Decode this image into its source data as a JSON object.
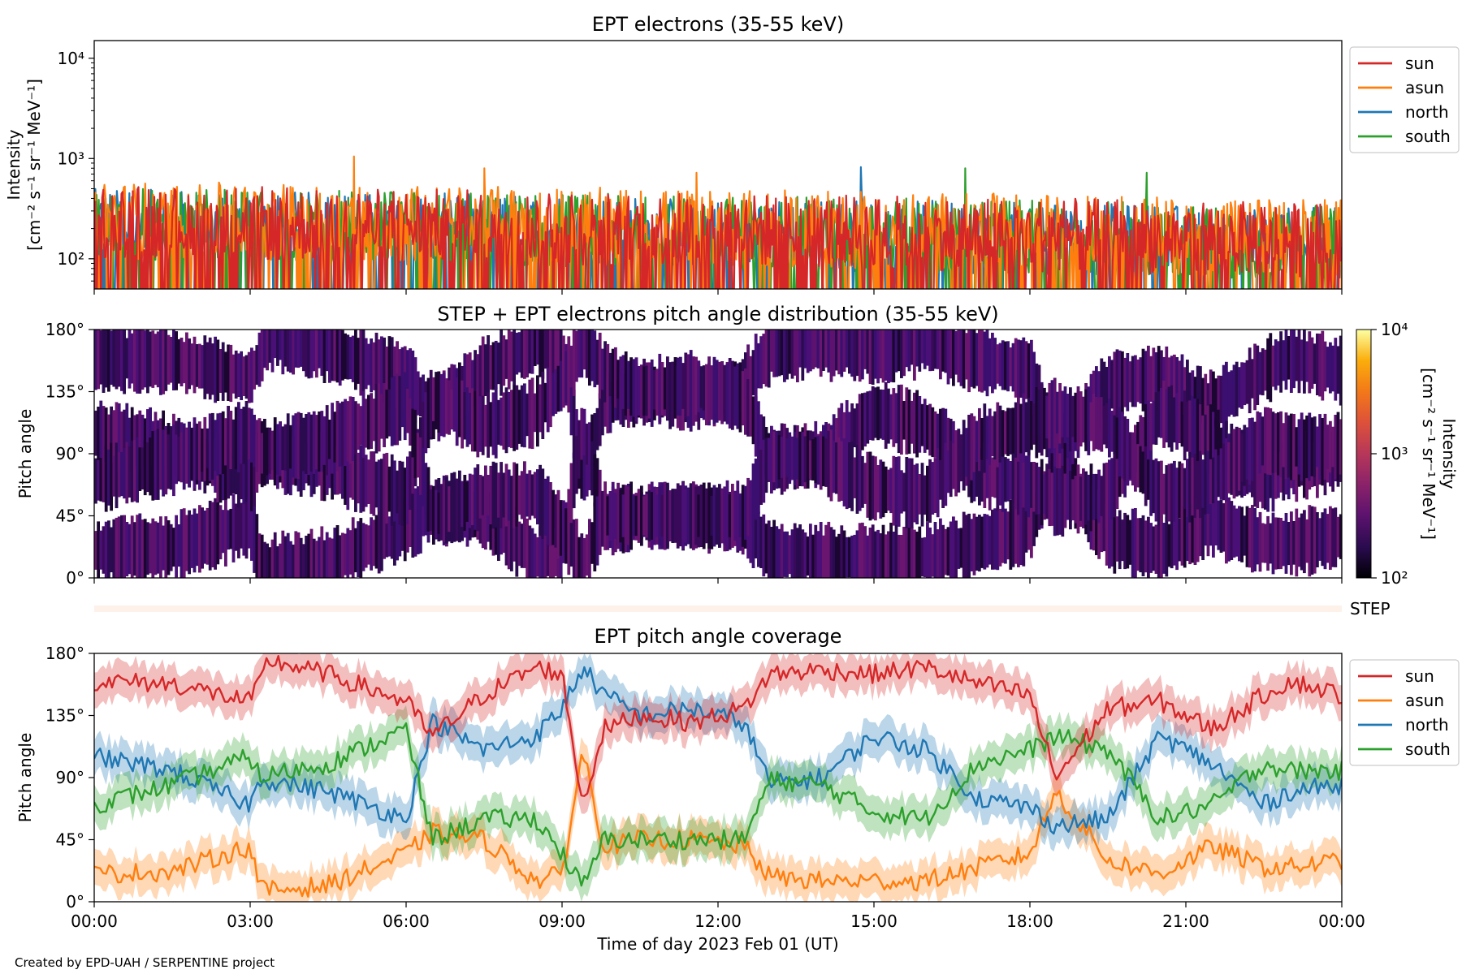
{
  "chart_data": [
    {
      "type": "line",
      "title": "EPT electrons (35-55 keV)",
      "ylabel": "Intensity",
      "ylabel_unit": "[cm⁻² s⁻¹ sr⁻¹ MeV⁻¹]",
      "yscale": "log",
      "ylim": [
        50,
        15000
      ],
      "yticks": [
        {
          "value": 100,
          "label": "10²"
        },
        {
          "value": 1000,
          "label": "10³"
        },
        {
          "value": 10000,
          "label": "10⁴"
        }
      ],
      "xlim": [
        "2023-02-01T00:00",
        "2023-02-02T00:00"
      ],
      "legend": "upper-right-outside",
      "series": [
        {
          "name": "sun",
          "color": "#d62728",
          "typical_range": [
            60,
            550
          ]
        },
        {
          "name": "asun",
          "color": "#ff7f0e",
          "typical_range": [
            60,
            600
          ],
          "peaks": [
            {
              "x": "05:00",
              "y": 1050
            },
            {
              "x": "07:30",
              "y": 800
            },
            {
              "x": "11:35",
              "y": 720
            }
          ]
        },
        {
          "name": "north",
          "color": "#1f77b4",
          "typical_range": [
            55,
            500
          ],
          "peaks": [
            {
              "x": "14:45",
              "y": 820
            }
          ]
        },
        {
          "name": "south",
          "color": "#2ca02c",
          "typical_range": [
            55,
            520
          ],
          "peaks": [
            {
              "x": "16:45",
              "y": 800
            },
            {
              "x": "20:15",
              "y": 720
            }
          ]
        }
      ]
    },
    {
      "type": "heatmap",
      "title": "STEP + EPT electrons pitch angle distribution (35-55 keV)",
      "ylabel": "Pitch angle",
      "ylim": [
        0,
        180
      ],
      "yticks": [
        "0°",
        "45°",
        "90°",
        "135°",
        "180°"
      ],
      "colormap": "inferno",
      "cmap_colors": [
        "#000004",
        "#2a0b4f",
        "#5c126e",
        "#8a226a",
        "#b73759",
        "#dd513a",
        "#f37819",
        "#fbad0b",
        "#fcffa4"
      ],
      "colorbar": {
        "label": "Intensity",
        "unit": "[cm⁻² s⁻¹ sr⁻¹ MeV⁻¹]",
        "scale": "log",
        "range": [
          100,
          10000
        ],
        "ticks": [
          {
            "value": 100,
            "label": "10²"
          },
          {
            "value": 1000,
            "label": "10³"
          },
          {
            "value": 10000,
            "label": "10⁴"
          }
        ]
      },
      "step_strip_label": "STEP"
    },
    {
      "type": "line",
      "title": "EPT pitch angle coverage",
      "ylabel": "Pitch angle",
      "xlabel": "Time of day 2023 Feb 01 (UT)",
      "ylim": [
        0,
        180
      ],
      "yticks": [
        "0°",
        "45°",
        "90°",
        "135°",
        "180°"
      ],
      "xticks": [
        "00:00",
        "03:00",
        "06:00",
        "09:00",
        "12:00",
        "15:00",
        "18:00",
        "21:00",
        "00:00"
      ],
      "x_hours": [
        0,
        1.5,
        3,
        3.2,
        3.35,
        4.5,
        6,
        6.5,
        7.5,
        8.5,
        9,
        9.4,
        9.8,
        10.5,
        11.5,
        12.5,
        13,
        14,
        15,
        16,
        17,
        18,
        18.5,
        19.5,
        20.5,
        21.5,
        22.5,
        23,
        24
      ],
      "legend": "upper-right-outside",
      "series": [
        {
          "name": "sun",
          "color": "#d62728",
          "values": [
            160,
            158,
            145,
            160,
            175,
            165,
            145,
            120,
            150,
            170,
            165,
            70,
            125,
            135,
            130,
            140,
            165,
            168,
            165,
            170,
            158,
            150,
            90,
            140,
            145,
            125,
            150,
            160,
            150
          ]
        },
        {
          "name": "asun",
          "color": "#ff7f0e",
          "values": [
            20,
            22,
            40,
            10,
            8,
            12,
            35,
            50,
            45,
            15,
            20,
            110,
            40,
            45,
            45,
            40,
            18,
            15,
            15,
            15,
            25,
            35,
            80,
            30,
            20,
            40,
            25,
            25,
            30
          ]
        },
        {
          "name": "north",
          "color": "#1f77b4",
          "values": [
            105,
            95,
            70,
            90,
            88,
            80,
            60,
            130,
            110,
            120,
            140,
            170,
            150,
            135,
            140,
            130,
            85,
            90,
            120,
            110,
            75,
            68,
            55,
            60,
            120,
            100,
            70,
            80,
            85
          ]
        },
        {
          "name": "south",
          "color": "#2ca02c",
          "values": [
            70,
            85,
            105,
            90,
            92,
            100,
            125,
            45,
            60,
            60,
            35,
            10,
            45,
            45,
            45,
            45,
            88,
            85,
            65,
            60,
            100,
            110,
            120,
            110,
            60,
            70,
            100,
            95,
            95
          ]
        }
      ]
    }
  ],
  "footer": {
    "credit": "Created by EPD-UAH / SERPENTINE project"
  }
}
